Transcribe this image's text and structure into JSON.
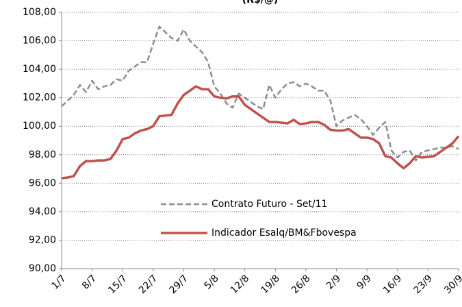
{
  "chart_data": {
    "type": "line",
    "title": "(R$/@)",
    "categories": [
      "1/7",
      null,
      null,
      null,
      null,
      "8/7",
      null,
      null,
      null,
      null,
      "15/7",
      null,
      null,
      null,
      null,
      "22/7",
      null,
      null,
      null,
      null,
      "29/7",
      null,
      null,
      null,
      null,
      "5/8",
      null,
      null,
      null,
      null,
      "12/8",
      null,
      null,
      null,
      null,
      "19/8",
      null,
      null,
      null,
      null,
      "26/8",
      null,
      null,
      null,
      null,
      "2/9",
      null,
      null,
      null,
      null,
      "9/9",
      null,
      null,
      null,
      null,
      "16/9",
      null,
      null,
      null,
      null,
      "23/9",
      null,
      null,
      null,
      null,
      "30/9"
    ],
    "series": [
      {
        "name": "Contrato Futuro - Set/11",
        "color": "#8c8c8c",
        "dashed": true,
        "values": [
          101.4,
          101.8,
          102.2,
          102.9,
          102.4,
          103.2,
          102.6,
          102.8,
          102.9,
          103.3,
          103.2,
          103.9,
          104.2,
          104.5,
          104.5,
          105.8,
          107.0,
          106.6,
          106.2,
          106.0,
          106.8,
          106.0,
          105.6,
          105.2,
          104.5,
          102.8,
          102.3,
          101.6,
          101.3,
          102.3,
          102.0,
          101.7,
          101.4,
          101.2,
          102.9,
          102.0,
          102.6,
          103.0,
          103.1,
          102.8,
          103.0,
          102.8,
          102.5,
          102.5,
          101.8,
          100.0,
          100.4,
          100.6,
          100.8,
          100.5,
          100.0,
          99.4,
          99.9,
          100.3,
          98.3,
          97.8,
          98.2,
          98.3,
          97.6,
          98.2,
          98.3,
          98.4,
          98.5,
          98.5,
          98.6,
          98.4
        ]
      },
      {
        "name": "Indicador Esalq/BM&Fbovespa",
        "color": "#c0504d",
        "dashed": false,
        "values": [
          96.35,
          96.4,
          96.5,
          97.2,
          97.55,
          97.55,
          97.6,
          97.6,
          97.7,
          98.3,
          99.1,
          99.2,
          99.5,
          99.7,
          99.8,
          100.0,
          100.7,
          100.75,
          100.8,
          101.6,
          102.2,
          102.5,
          102.8,
          102.6,
          102.6,
          102.1,
          102.0,
          101.95,
          102.1,
          102.1,
          101.5,
          101.2,
          100.9,
          100.6,
          100.3,
          100.3,
          100.25,
          100.2,
          100.45,
          100.15,
          100.2,
          100.3,
          100.3,
          100.1,
          99.75,
          99.7,
          99.7,
          99.8,
          99.5,
          99.2,
          99.2,
          99.1,
          98.8,
          97.9,
          97.8,
          97.4,
          97.05,
          97.4,
          97.9,
          97.8,
          97.85,
          97.9,
          98.2,
          98.5,
          98.8,
          99.3
        ]
      }
    ],
    "ylim": [
      90,
      108
    ],
    "yticks": [
      {
        "value": 90,
        "label": "90,00"
      },
      {
        "value": 92,
        "label": "92,00"
      },
      {
        "value": 94,
        "label": "94,00"
      },
      {
        "value": 96,
        "label": "96,00"
      },
      {
        "value": 98,
        "label": "98,00"
      },
      {
        "value": 100,
        "label": "100,00"
      },
      {
        "value": 102,
        "label": "102,00"
      },
      {
        "value": 104,
        "label": "104,00"
      },
      {
        "value": 106,
        "label": "106,00"
      },
      {
        "value": 108,
        "label": "108,00"
      }
    ],
    "grid": true
  }
}
